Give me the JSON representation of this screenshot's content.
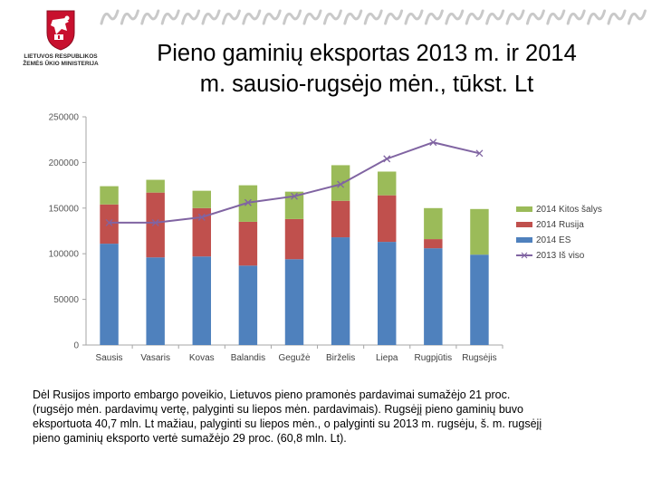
{
  "logo": {
    "line1": "LIETUVOS RESPUBLIKOS",
    "line2": "ŽEMĖS ŪKIO MINISTERIJA"
  },
  "title_lines": [
    "Pieno gaminių eksportas 2013 m. ir 2014",
    "m. sausio-rugsėjo mėn., tūkst. Lt"
  ],
  "chart_data": {
    "type": "bar",
    "stacked": true,
    "title": "Pieno gaminių eksportas 2013 m. ir 2014 m. sausio-rugsėjo mėn., tūkst. Lt",
    "categories": [
      "Sausis",
      "Vasaris",
      "Kovas",
      "Balandis",
      "Gegužė",
      "Birželis",
      "Liepa",
      "Rugpjūtis",
      "Rugsėjis"
    ],
    "series": [
      {
        "name": "2014 ES",
        "type": "bar",
        "color": "#4f81bd",
        "values": [
          111000,
          96000,
          97000,
          87000,
          94000,
          118000,
          113000,
          106000,
          99000
        ]
      },
      {
        "name": "2014 Rusija",
        "type": "bar",
        "color": "#c0504d",
        "values": [
          43000,
          71000,
          53000,
          48000,
          44000,
          40000,
          51000,
          10000,
          0
        ]
      },
      {
        "name": "2014 Kitos šalys",
        "type": "bar",
        "color": "#9bbb59",
        "values": [
          20000,
          14000,
          19000,
          40000,
          30000,
          39000,
          26000,
          34000,
          50000
        ]
      },
      {
        "name": "2013 Iš viso",
        "type": "line",
        "color": "#8064a2",
        "values": [
          134000,
          134000,
          140000,
          156000,
          163000,
          176000,
          204000,
          222000,
          210000
        ]
      }
    ],
    "legend_order": [
      "2014 Kitos šalys",
      "2014 Rusija",
      "2014 ES",
      "2013 Iš viso"
    ],
    "legend_position": "right",
    "ylim": [
      0,
      250000
    ],
    "yticks": [
      0,
      50000,
      100000,
      150000,
      200000,
      250000
    ],
    "ytick_labels": [
      "0",
      "50000",
      "100000",
      "150000",
      "200000",
      "250000"
    ],
    "xlabel": "",
    "ylabel": "",
    "grid": false
  },
  "description_lines": [
    "Dėl Rusijos importo embargo poveikio, Lietuvos pieno pramonės pardavimai sumažėjo 21 proc.",
    "(rugsėjo mėn. pardavimų vertę, palyginti su liepos mėn. pardavimais). Rugsėjį pieno gaminių buvo",
    "eksportuota 40,7 mln. Lt mažiau, palyginti su liepos mėn., o palyginti su 2013 m. rugsėju, š. m. rugsėjį",
    "pieno gaminių eksporto vertė sumažėjo 29 proc. (60,8 mln. Lt)."
  ]
}
